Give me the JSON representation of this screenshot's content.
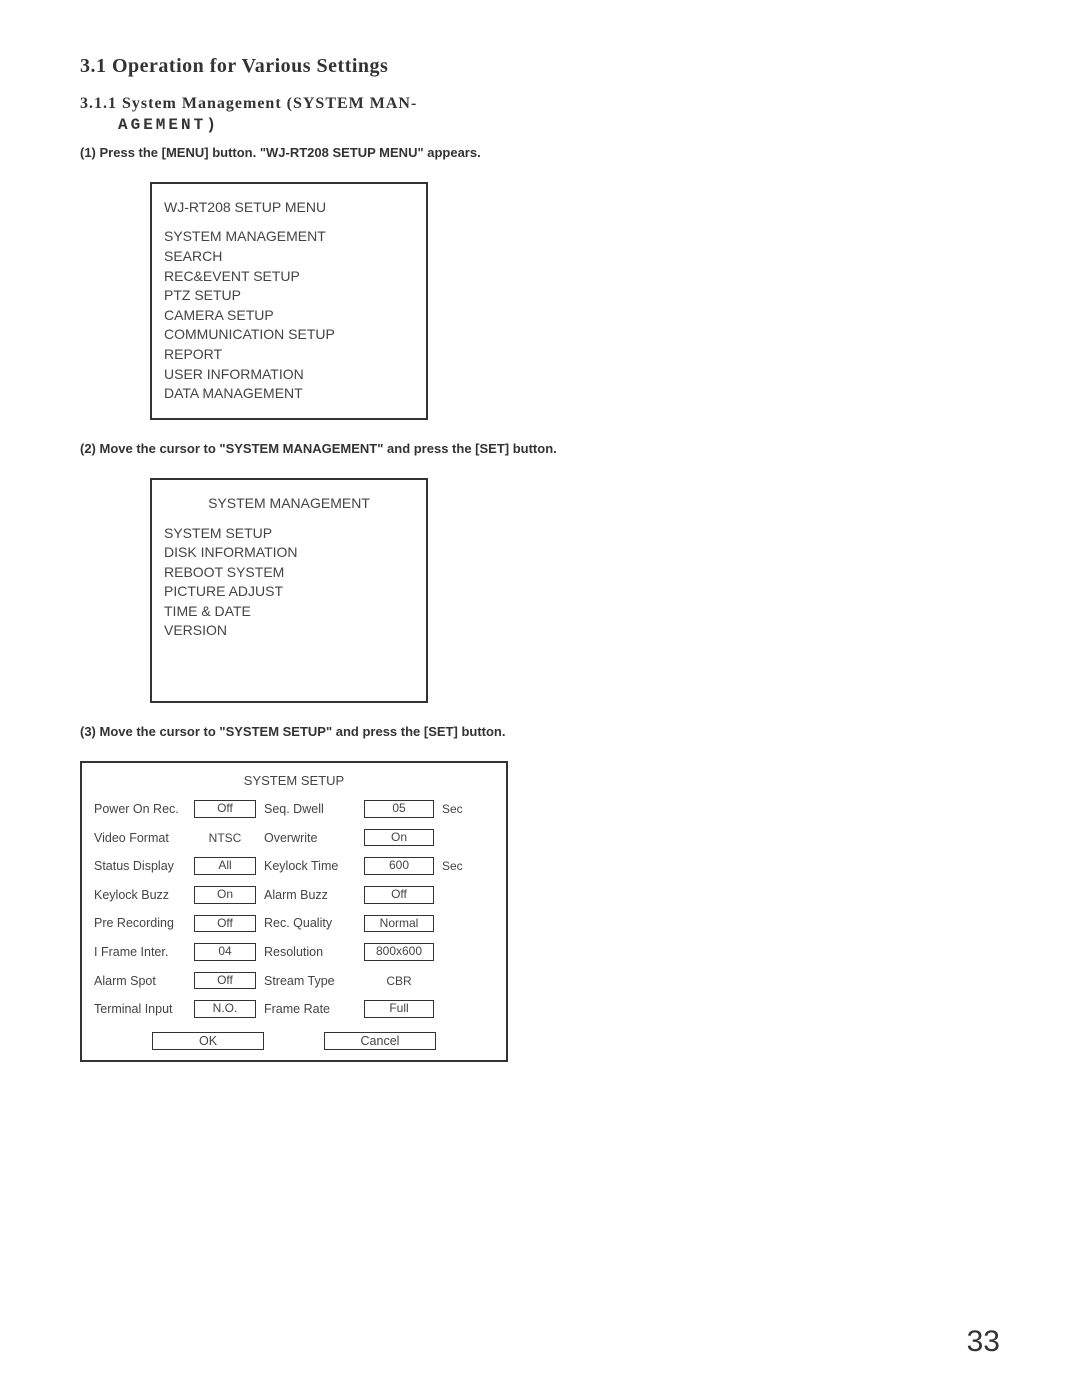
{
  "page_number": "33",
  "headings": {
    "h1": "3.1 Operation for Various Settings",
    "h2_line1": "3.1.1 System Management (SYSTEM MAN-",
    "h2_line2": "AGEMENT)"
  },
  "steps": {
    "s1": "(1) Press the [MENU] button. \"WJ-RT208 SETUP MENU\" appears.",
    "s2": "(2) Move the cursor to \"SYSTEM MANAGEMENT\" and press the [SET] button.",
    "s3": "(3) Move the cursor to \"SYSTEM SETUP\" and press the [SET] button."
  },
  "menu1": {
    "title": "WJ-RT208 SETUP MENU",
    "items": [
      "SYSTEM MANAGEMENT",
      "SEARCH",
      "REC&EVENT SETUP",
      "PTZ SETUP",
      "CAMERA SETUP",
      "COMMUNICATION SETUP",
      "REPORT",
      "USER INFORMATION",
      "DATA MANAGEMENT"
    ]
  },
  "menu2": {
    "title": "SYSTEM MANAGEMENT",
    "items": [
      "SYSTEM SETUP",
      "DISK INFORMATION",
      "REBOOT SYSTEM",
      "PICTURE ADJUST",
      "TIME & DATE",
      "VERSION"
    ]
  },
  "setup": {
    "title": "SYSTEM SETUP",
    "rows": [
      {
        "l1": "Power On Rec.",
        "v1": "Off",
        "box1": true,
        "l2": "Seq. Dwell",
        "v2": "05",
        "box2": true,
        "unit": "Sec"
      },
      {
        "l1": "Video Format",
        "v1": "NTSC",
        "box1": false,
        "l2": "Overwrite",
        "v2": "On",
        "box2": true,
        "unit": ""
      },
      {
        "l1": "Status Display",
        "v1": "All",
        "box1": true,
        "l2": "Keylock Time",
        "v2": "600",
        "box2": true,
        "unit": "Sec"
      },
      {
        "l1": "Keylock Buzz",
        "v1": "On",
        "box1": true,
        "l2": "Alarm Buzz",
        "v2": "Off",
        "box2": true,
        "unit": ""
      },
      {
        "l1": "Pre Recording",
        "v1": "Off",
        "box1": true,
        "l2": "Rec. Quality",
        "v2": "Normal",
        "box2": true,
        "unit": ""
      },
      {
        "l1": "I Frame Inter.",
        "v1": "04",
        "box1": true,
        "l2": "Resolution",
        "v2": "800x600",
        "box2": true,
        "unit": ""
      },
      {
        "l1": "Alarm Spot",
        "v1": "Off",
        "box1": true,
        "l2": "Stream Type",
        "v2": "CBR",
        "box2": false,
        "unit": ""
      },
      {
        "l1": "Terminal Input",
        "v1": "N.O.",
        "box1": true,
        "l2": "Frame Rate",
        "v2": "Full",
        "box2": true,
        "unit": ""
      }
    ],
    "ok": "OK",
    "cancel": "Cancel"
  }
}
